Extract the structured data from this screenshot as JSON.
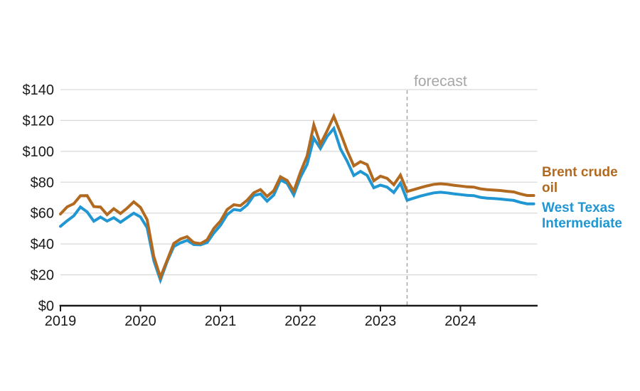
{
  "page": {
    "background_color": "#ffffff"
  },
  "chart_data": {
    "type": "line",
    "title": "",
    "xlabel": "",
    "ylabel": "",
    "x_unit": "month",
    "x_start_year": 2019,
    "x_tick_labels": [
      "2019",
      "2020",
      "2021",
      "2022",
      "2023",
      "2024"
    ],
    "y_ticks": [
      0,
      20,
      40,
      60,
      80,
      100,
      120,
      140
    ],
    "y_tick_labels": [
      "$0",
      "$20",
      "$40",
      "$60",
      "$80",
      "$100",
      "$120",
      "$140"
    ],
    "ylim": [
      0,
      140
    ],
    "grid": "horizontal-only",
    "gridline_color": "#d9d9d9",
    "axis_color": "#1a1a1a",
    "legend_position": "right-of-plot",
    "forecast_divider": {
      "label": "forecast",
      "starts_at_month": "2023-05",
      "line_color": "#ababab",
      "label_color": "#a6a6a6"
    },
    "series": [
      {
        "name": "Brent crude oil",
        "label_lines": [
          "Brent crude",
          "oil"
        ],
        "color": "#b26a21",
        "monthly_values": [
          59.4,
          64.0,
          66.1,
          71.2,
          71.3,
          64.2,
          63.9,
          59.0,
          62.8,
          59.7,
          63.2,
          67.3,
          63.7,
          55.7,
          31.8,
          18.4,
          29.4,
          40.3,
          43.2,
          44.7,
          40.9,
          40.2,
          42.7,
          50.0,
          54.8,
          62.3,
          65.4,
          64.8,
          68.3,
          73.2,
          75.2,
          70.8,
          74.5,
          83.5,
          81.1,
          74.2,
          86.5,
          97.1,
          117.2,
          104.6,
          113.3,
          122.7,
          111.9,
          100.5,
          90.6,
          93.3,
          91.4,
          80.9,
          83.9,
          82.5,
          78.4,
          84.6,
          74.0,
          75.2,
          76.5,
          77.6,
          78.6,
          79.0,
          78.6,
          78.0,
          77.5,
          77.0,
          76.8,
          75.7,
          75.2,
          74.9,
          74.6,
          74.1,
          73.7,
          72.4,
          71.4,
          71.4
        ]
      },
      {
        "name": "West Texas Intermediate",
        "label_lines": [
          "West Texas",
          "Intermediate"
        ],
        "color": "#2097d3",
        "monthly_values": [
          51.4,
          55.0,
          58.2,
          63.9,
          60.8,
          54.7,
          57.4,
          54.8,
          57.0,
          54.0,
          57.0,
          59.9,
          57.5,
          50.5,
          29.2,
          16.6,
          28.6,
          38.3,
          40.7,
          42.3,
          39.6,
          39.4,
          40.9,
          47.0,
          52.0,
          59.0,
          62.3,
          61.7,
          65.2,
          71.4,
          72.4,
          67.7,
          71.7,
          81.5,
          79.2,
          71.7,
          83.2,
          91.6,
          108.5,
          101.8,
          109.6,
          114.8,
          101.6,
          93.7,
          84.3,
          87.0,
          84.4,
          76.4,
          78.1,
          76.8,
          73.3,
          79.4,
          68.3,
          69.7,
          71.0,
          72.1,
          73.1,
          73.5,
          73.1,
          72.5,
          72.0,
          71.5,
          71.3,
          70.2,
          69.7,
          69.4,
          69.1,
          68.6,
          68.2,
          66.9,
          66.0,
          66.0
        ]
      }
    ]
  }
}
